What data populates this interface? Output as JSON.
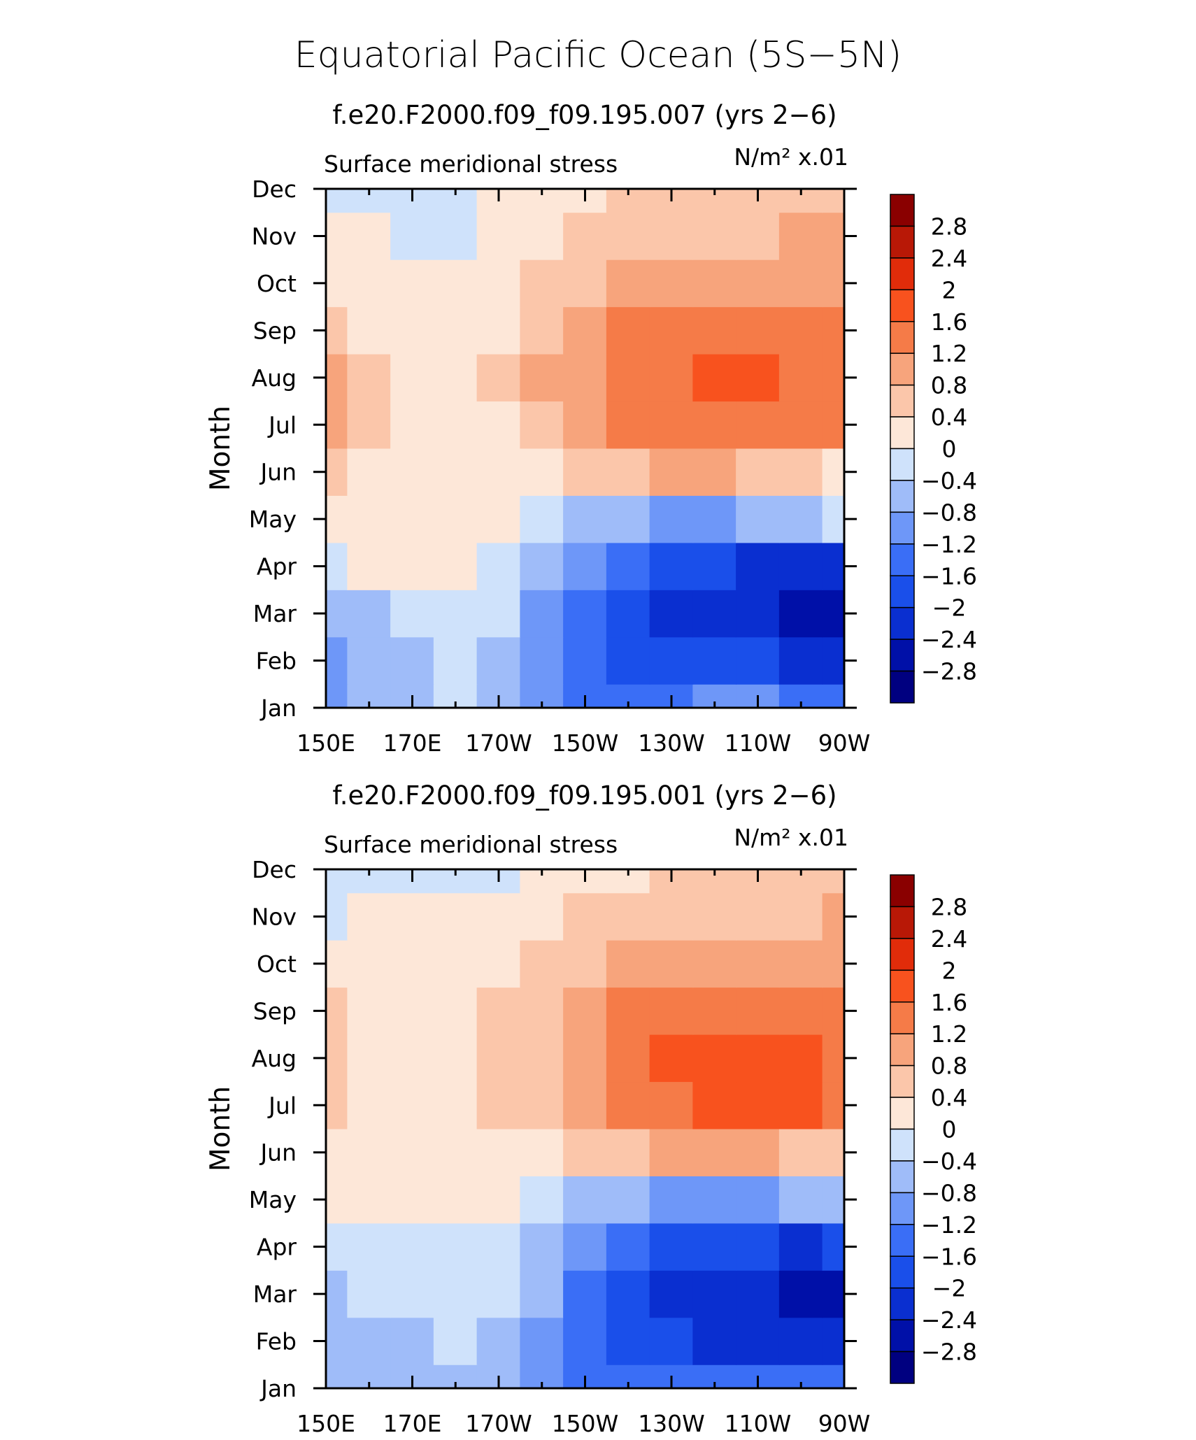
{
  "figure": {
    "title": "Equatorial Pacific Ocean (5S−5N)"
  },
  "chart_data": [
    {
      "type": "heatmap",
      "title": "f.e20.F2000.f09_f09.195.007 (yrs 2−6)",
      "subtitle_left": "Surface meridional stress",
      "units": "N/m² x.01",
      "xlabel": "",
      "ylabel": "Month",
      "x_ticks": [
        "150E",
        "170E",
        "170W",
        "150W",
        "130W",
        "110W",
        "90W"
      ],
      "y_ticks": [
        "Jan",
        "Feb",
        "Mar",
        "Apr",
        "May",
        "Jun",
        "Jul",
        "Aug",
        "Sep",
        "Oct",
        "Nov",
        "Dec"
      ],
      "colorbar_labels": [
        "2.8",
        "2.4",
        "2",
        "1.6",
        "1.2",
        "0.8",
        "0.4",
        "0",
        "−0.4",
        "−0.8",
        "−1.2",
        "−1.6",
        "−2",
        "−2.4",
        "−2.8"
      ],
      "x": [
        150,
        160,
        170,
        180,
        190,
        200,
        210,
        220,
        230,
        240,
        250,
        260,
        270
      ],
      "values": [
        [
          -1.0,
          -0.7,
          -0.5,
          -0.3,
          -0.5,
          -0.9,
          -1.3,
          -1.4,
          -1.3,
          -1.2,
          -1.2,
          -1.3,
          -1.5
        ],
        [
          -1.0,
          -0.8,
          -0.7,
          -0.4,
          -0.6,
          -1.1,
          -1.6,
          -1.8,
          -1.9,
          -1.9,
          -1.9,
          -2.2,
          -2.4
        ],
        [
          -0.6,
          -0.5,
          -0.4,
          -0.3,
          -0.4,
          -0.9,
          -1.5,
          -1.9,
          -2.2,
          -2.3,
          -2.4,
          -2.6,
          -2.7
        ],
        [
          -0.2,
          0.0,
          0.1,
          0.0,
          -0.2,
          -0.6,
          -1.1,
          -1.6,
          -1.9,
          -2.0,
          -2.1,
          -2.2,
          -2.2
        ],
        [
          0.1,
          0.2,
          0.1,
          0.1,
          0.0,
          -0.3,
          -0.6,
          -0.8,
          -0.9,
          -0.9,
          -0.8,
          -0.6,
          -0.4
        ],
        [
          0.5,
          0.3,
          0.2,
          0.1,
          0.1,
          0.2,
          0.4,
          0.6,
          0.8,
          0.8,
          0.6,
          0.5,
          0.3
        ],
        [
          0.8,
          0.4,
          0.2,
          0.2,
          0.3,
          0.6,
          0.9,
          1.3,
          1.4,
          1.5,
          1.5,
          1.4,
          1.2
        ],
        [
          0.8,
          0.4,
          0.2,
          0.2,
          0.4,
          0.8,
          1.1,
          1.4,
          1.5,
          1.6,
          1.6,
          1.5,
          1.4
        ],
        [
          0.5,
          0.3,
          0.2,
          0.2,
          0.3,
          0.6,
          0.9,
          1.3,
          1.4,
          1.4,
          1.3,
          1.3,
          1.2
        ],
        [
          0.3,
          0.2,
          0.1,
          0.1,
          0.2,
          0.4,
          0.7,
          0.9,
          1.0,
          0.9,
          0.9,
          0.9,
          1.0
        ],
        [
          0.1,
          0.1,
          -0.1,
          -0.1,
          0.1,
          0.3,
          0.5,
          0.6,
          0.7,
          0.7,
          0.7,
          0.8,
          0.9
        ],
        [
          -0.1,
          -0.1,
          -0.2,
          -0.2,
          0.1,
          0.2,
          0.3,
          0.5,
          0.5,
          0.5,
          0.4,
          0.5,
          0.6
        ]
      ]
    },
    {
      "type": "heatmap",
      "title": "f.e20.F2000.f09_f09.195.001 (yrs 2−6)",
      "subtitle_left": "Surface meridional stress",
      "units": "N/m² x.01",
      "xlabel": "",
      "ylabel": "Month",
      "x_ticks": [
        "150E",
        "170E",
        "170W",
        "150W",
        "130W",
        "110W",
        "90W"
      ],
      "y_ticks": [
        "Jan",
        "Feb",
        "Mar",
        "Apr",
        "May",
        "Jun",
        "Jul",
        "Aug",
        "Sep",
        "Oct",
        "Nov",
        "Dec"
      ],
      "colorbar_labels": [
        "2.8",
        "2.4",
        "2",
        "1.6",
        "1.2",
        "0.8",
        "0.4",
        "0",
        "−0.4",
        "−0.8",
        "−1.2",
        "−1.6",
        "−2",
        "−2.4",
        "−2.8"
      ],
      "x": [
        150,
        160,
        170,
        180,
        190,
        200,
        210,
        220,
        230,
        240,
        250,
        260,
        270
      ],
      "values": [
        [
          -0.8,
          -0.6,
          -0.6,
          -0.5,
          -0.7,
          -1.0,
          -1.3,
          -1.4,
          -1.3,
          -1.3,
          -1.4,
          -1.5,
          -1.6
        ],
        [
          -0.7,
          -0.6,
          -0.5,
          -0.4,
          -0.6,
          -1.0,
          -1.4,
          -1.8,
          -2.0,
          -2.1,
          -2.2,
          -2.3,
          -2.3
        ],
        [
          -0.6,
          -0.4,
          -0.3,
          -0.3,
          -0.4,
          -0.8,
          -1.4,
          -1.8,
          -2.1,
          -2.2,
          -2.4,
          -2.6,
          -2.6
        ],
        [
          -0.2,
          -0.1,
          -0.1,
          -0.1,
          -0.2,
          -0.5,
          -1.1,
          -1.6,
          -1.9,
          -2.0,
          -2.0,
          -2.1,
          -2.0
        ],
        [
          0.1,
          0.1,
          0.1,
          0.1,
          0.0,
          -0.2,
          -0.5,
          -0.8,
          -0.9,
          -0.9,
          -0.9,
          -0.8,
          -0.6
        ],
        [
          0.3,
          0.2,
          0.1,
          0.1,
          0.1,
          0.2,
          0.4,
          0.6,
          0.8,
          0.9,
          0.8,
          0.6,
          0.5
        ],
        [
          0.6,
          0.3,
          0.2,
          0.2,
          0.4,
          0.6,
          0.9,
          1.3,
          1.5,
          1.6,
          1.6,
          1.7,
          1.5
        ],
        [
          0.6,
          0.3,
          0.2,
          0.2,
          0.4,
          0.7,
          1.1,
          1.5,
          1.7,
          1.7,
          1.6,
          1.7,
          1.5
        ],
        [
          0.5,
          0.3,
          0.2,
          0.2,
          0.4,
          0.6,
          0.9,
          1.3,
          1.4,
          1.4,
          1.3,
          1.3,
          1.2
        ],
        [
          0.3,
          0.2,
          0.2,
          0.2,
          0.3,
          0.5,
          0.7,
          0.8,
          0.9,
          0.9,
          0.9,
          0.9,
          1.0
        ],
        [
          -0.1,
          0.1,
          0.1,
          0.1,
          0.1,
          0.3,
          0.4,
          0.5,
          0.6,
          0.6,
          0.6,
          0.7,
          0.8
        ],
        [
          -0.2,
          -0.1,
          -0.1,
          -0.1,
          -0.1,
          0.1,
          0.2,
          0.3,
          0.4,
          0.4,
          0.4,
          0.5,
          0.6
        ]
      ]
    }
  ],
  "colormap": {
    "levels": [
      -2.8,
      -2.4,
      -2.0,
      -1.6,
      -1.2,
      -0.8,
      -0.4,
      0,
      0.4,
      0.8,
      1.2,
      1.6,
      2.0,
      2.4,
      2.8
    ],
    "colors": [
      "#000080",
      "#0010a8",
      "#0a2fd0",
      "#1a4fea",
      "#3a6ef6",
      "#6e97f8",
      "#9fbcf9",
      "#cfe2fb",
      "#fde7d8",
      "#fbc6aa",
      "#f7a47c",
      "#f57b48",
      "#f8521e",
      "#e12c0a",
      "#b81806",
      "#8a0000"
    ]
  }
}
